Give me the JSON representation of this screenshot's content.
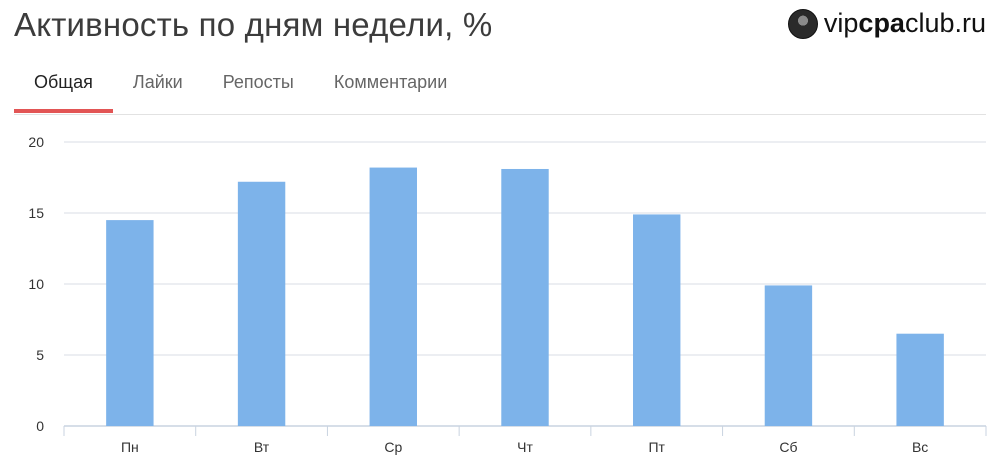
{
  "header": {
    "title": "Активность по дням недели, %",
    "brand": {
      "prefix": "vip",
      "strong": "cpa",
      "suffix": "club.ru"
    }
  },
  "tabs": [
    {
      "label": "Общая",
      "active": true
    },
    {
      "label": "Лайки",
      "active": false
    },
    {
      "label": "Репосты",
      "active": false
    },
    {
      "label": "Комментарии",
      "active": false
    }
  ],
  "colors": {
    "bar": "#7db3ea",
    "accent": "#e25555",
    "grid": "#dadde6"
  },
  "chart_data": {
    "type": "bar",
    "categories": [
      "Пн",
      "Вт",
      "Ср",
      "Чт",
      "Пт",
      "Сб",
      "Вс"
    ],
    "values": [
      14.5,
      17.2,
      18.2,
      18.1,
      14.9,
      9.9,
      6.5
    ],
    "ylim": [
      0,
      20
    ],
    "yticks": [
      0,
      5,
      10,
      15,
      20
    ],
    "grid": true,
    "title": "",
    "xlabel": "",
    "ylabel": ""
  }
}
